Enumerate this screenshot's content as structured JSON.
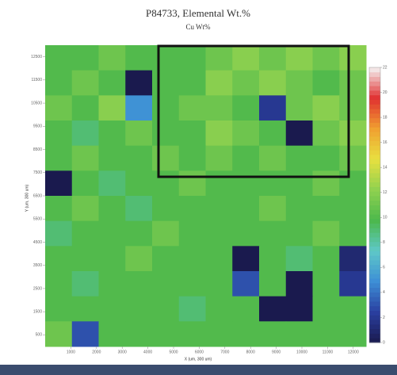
{
  "chart_data": {
    "type": "heatmap",
    "title": "P84733, Elemental Wt.%",
    "subtitle": "Cu Wt%",
    "x_label": "X (um, 300 um)",
    "y_label": "Y (um, 300 um)",
    "xlim": [
      0,
      12500
    ],
    "xticks": [
      1000,
      2000,
      3000,
      4000,
      5000,
      6000,
      7000,
      8000,
      9000,
      10000,
      11000,
      12000
    ],
    "ylim": [
      0,
      13000
    ],
    "yticks": [
      500,
      1500,
      2500,
      3500,
      4500,
      5500,
      6500,
      7500,
      8500,
      9500,
      10500,
      11500,
      12500
    ],
    "zlim": [
      0,
      22
    ],
    "zticks": [
      0,
      2,
      4,
      6,
      8,
      10,
      12,
      14,
      16,
      18,
      20,
      22
    ],
    "colors": [
      "#1a1a4e",
      "#2a3fa0",
      "#3d8fd6",
      "#5ec8c8",
      "#4cb84c",
      "#8fd14f",
      "#e8e040",
      "#f0a030",
      "#e03030",
      "#f4f4f4"
    ],
    "values": [
      [
        10,
        10,
        11,
        10,
        10,
        10,
        11,
        12,
        11,
        12,
        11,
        12
      ],
      [
        10,
        11,
        10,
        0,
        10,
        10,
        12,
        11,
        12,
        11,
        10,
        11
      ],
      [
        11,
        10,
        12,
        5,
        10,
        11,
        11,
        10,
        2,
        11,
        12,
        11
      ],
      [
        10,
        9,
        10,
        11,
        10,
        10,
        12,
        11,
        10,
        0,
        11,
        12
      ],
      [
        10,
        11,
        10,
        10,
        11,
        10,
        11,
        10,
        11,
        10,
        10,
        11
      ],
      [
        0,
        10,
        9,
        10,
        10,
        11,
        10,
        10,
        10,
        10,
        11,
        10
      ],
      [
        10,
        11,
        10,
        9,
        10,
        10,
        10,
        10,
        11,
        10,
        10,
        10
      ],
      [
        9,
        10,
        10,
        10,
        11,
        10,
        10,
        10,
        10,
        10,
        11,
        10
      ],
      [
        10,
        10,
        10,
        11,
        10,
        10,
        10,
        0,
        10,
        9,
        10,
        1
      ],
      [
        10,
        9,
        10,
        10,
        10,
        10,
        10,
        3,
        10,
        0,
        10,
        2
      ],
      [
        10,
        10,
        10,
        10,
        10,
        9,
        10,
        10,
        0,
        0,
        10,
        10
      ],
      [
        11,
        3,
        10,
        10,
        10,
        10,
        10,
        10,
        10,
        10,
        10,
        10
      ]
    ]
  }
}
